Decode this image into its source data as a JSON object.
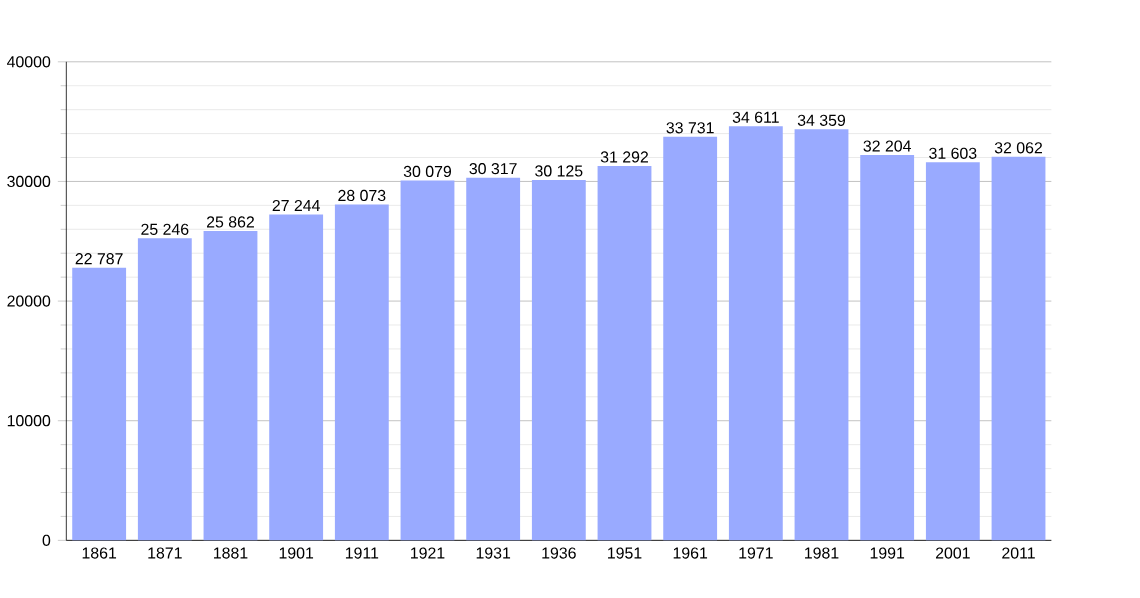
{
  "chart_data": {
    "type": "bar",
    "categories": [
      "1861",
      "1871",
      "1881",
      "1901",
      "1911",
      "1921",
      "1931",
      "1936",
      "1951",
      "1961",
      "1971",
      "1981",
      "1991",
      "2001",
      "2011"
    ],
    "values": [
      22787,
      25246,
      25862,
      27244,
      28073,
      30079,
      30317,
      30125,
      31292,
      33731,
      34611,
      34359,
      32204,
      31603,
      32062
    ],
    "value_labels": [
      "22 787",
      "25 246",
      "25 862",
      "27 244",
      "28 073",
      "30 079",
      "30 317",
      "30 125",
      "31 292",
      "33 731",
      "34 611",
      "34 359",
      "32 204",
      "31 603",
      "32 062"
    ],
    "color": "#99aaff",
    "ylim": [
      0,
      40000
    ],
    "yticks": [
      0,
      10000,
      20000,
      30000,
      40000
    ],
    "grid": "y"
  }
}
